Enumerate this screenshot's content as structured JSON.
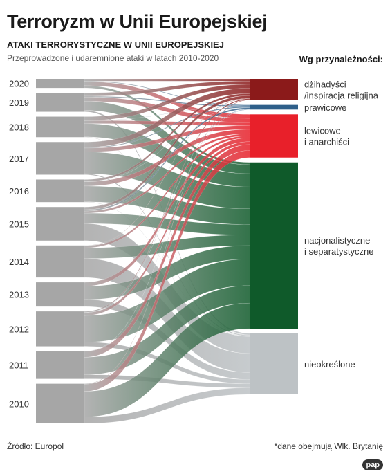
{
  "title": "Terroryzm w Unii Europejskiej",
  "subtitle": "ATAKI TERRORYSTYCZNE W UNII EUROPEJSKIEJ",
  "description": "Przeprowadzone i udaremnione ataki w latach 2010-2020",
  "legend_title": "Wg przynależności:",
  "source": "Źródło: Europol",
  "footnote": "*dane obejmują Wlk. Brytanię",
  "logo": "pap",
  "colors": {
    "jihadist": "#8b1a1a",
    "right": "#2e5f8a",
    "left": "#e8202a",
    "separatist": "#0f5a2a",
    "unspecified": "#bdc2c5",
    "year_source": "#a6a6a6"
  },
  "chart_data": {
    "type": "sankey",
    "unit": "ataki",
    "years": [
      "2020",
      "2019",
      "2018",
      "2017",
      "2016",
      "2015",
      "2014",
      "2013",
      "2012",
      "2011",
      "2010"
    ],
    "categories": [
      {
        "key": "jihadist",
        "label": [
          "dżihadyści",
          "/inspiracja religijna"
        ]
      },
      {
        "key": "right",
        "label": [
          "prawicowe"
        ]
      },
      {
        "key": "left",
        "label": [
          "lewicowe",
          "i anarchiści"
        ]
      },
      {
        "key": "separatist",
        "label": [
          "nacjonalistyczne",
          "i separatystyczne"
        ]
      },
      {
        "key": "unspecified",
        "label": [
          "nieokreślone"
        ]
      }
    ],
    "flows": {
      "2020": {
        "jihadist": 14,
        "right": 4,
        "left": 25,
        "separatist": 14,
        "unspecified": 0
      },
      "2019": {
        "jihadist": 21,
        "right": 6,
        "left": 26,
        "separatist": 57,
        "unspecified": 9
      },
      "2018": {
        "jihadist": 24,
        "right": 1,
        "left": 19,
        "separatist": 83,
        "unspecified": 2
      },
      "2017": {
        "jihadist": 33,
        "right": 5,
        "left": 24,
        "separatist": 137,
        "unspecified": 6
      },
      "2016": {
        "jihadist": 13,
        "right": 1,
        "left": 27,
        "separatist": 99,
        "unspecified": 2
      },
      "2015": {
        "jihadist": 17,
        "right": 9,
        "left": 13,
        "separatist": 65,
        "unspecified": 107
      },
      "2014": {
        "jihadist": 2,
        "right": 0,
        "left": 13,
        "separatist": 67,
        "unspecified": 119
      },
      "2013": {
        "jihadist": 0,
        "right": 0,
        "left": 24,
        "separatist": 84,
        "unspecified": 44
      },
      "2012": {
        "jihadist": 6,
        "right": 2,
        "left": 18,
        "separatist": 167,
        "unspecified": 26
      },
      "2011": {
        "jihadist": 0,
        "right": 1,
        "left": 37,
        "separatist": 110,
        "unspecified": 26
      },
      "2010": {
        "jihadist": 3,
        "right": 0,
        "left": 45,
        "separatist": 160,
        "unspecified": 41
      }
    }
  }
}
